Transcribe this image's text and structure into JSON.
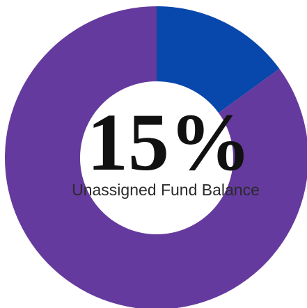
{
  "chart_data": {
    "type": "donut",
    "values": [
      15,
      85
    ],
    "colors": [
      "#0847ab",
      "#653a9e"
    ],
    "center_text": "15%",
    "subtitle": "Unassigned Fund Balance"
  }
}
